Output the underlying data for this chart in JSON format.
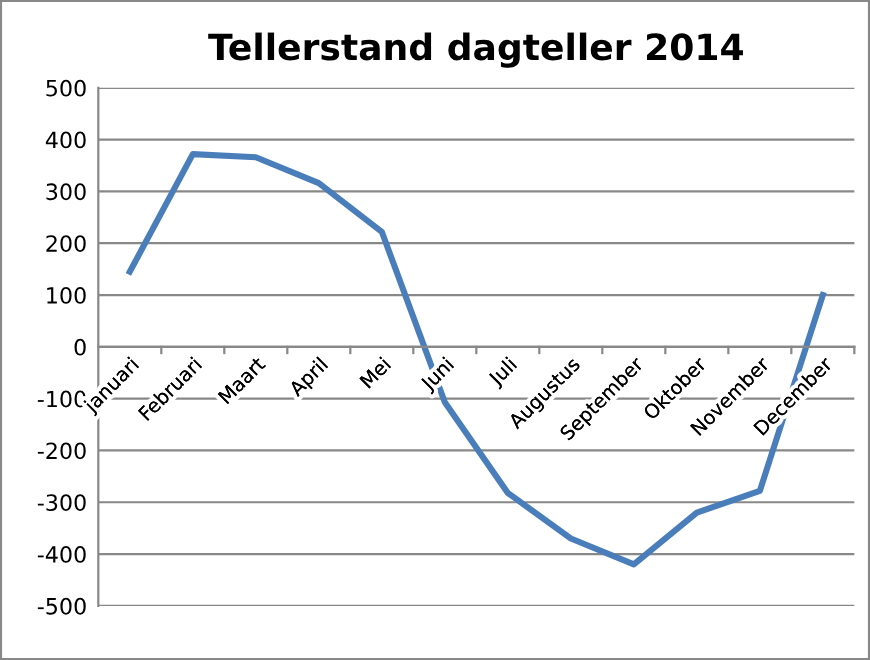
{
  "chart_data": {
    "type": "line",
    "title": "Tellerstand dagteller 2014",
    "categories": [
      "januari",
      "Februari",
      "Maart",
      "April",
      "Mei",
      "Juni",
      "Juli",
      "Augustus",
      "September",
      "Oktober",
      "November",
      "December"
    ],
    "series": [
      {
        "color": "#4a7ebb",
        "values": [
          145,
          372,
          366,
          316,
          222,
          -107,
          -282,
          -370,
          -420,
          -320,
          -278,
          100
        ]
      }
    ],
    "ylim": [
      -500,
      500
    ],
    "yticks": [
      -500,
      -400,
      -300,
      -200,
      -100,
      0,
      100,
      200,
      300,
      400,
      500
    ],
    "grid": "y",
    "legend": false,
    "marker": "none",
    "line_style": "solid"
  }
}
